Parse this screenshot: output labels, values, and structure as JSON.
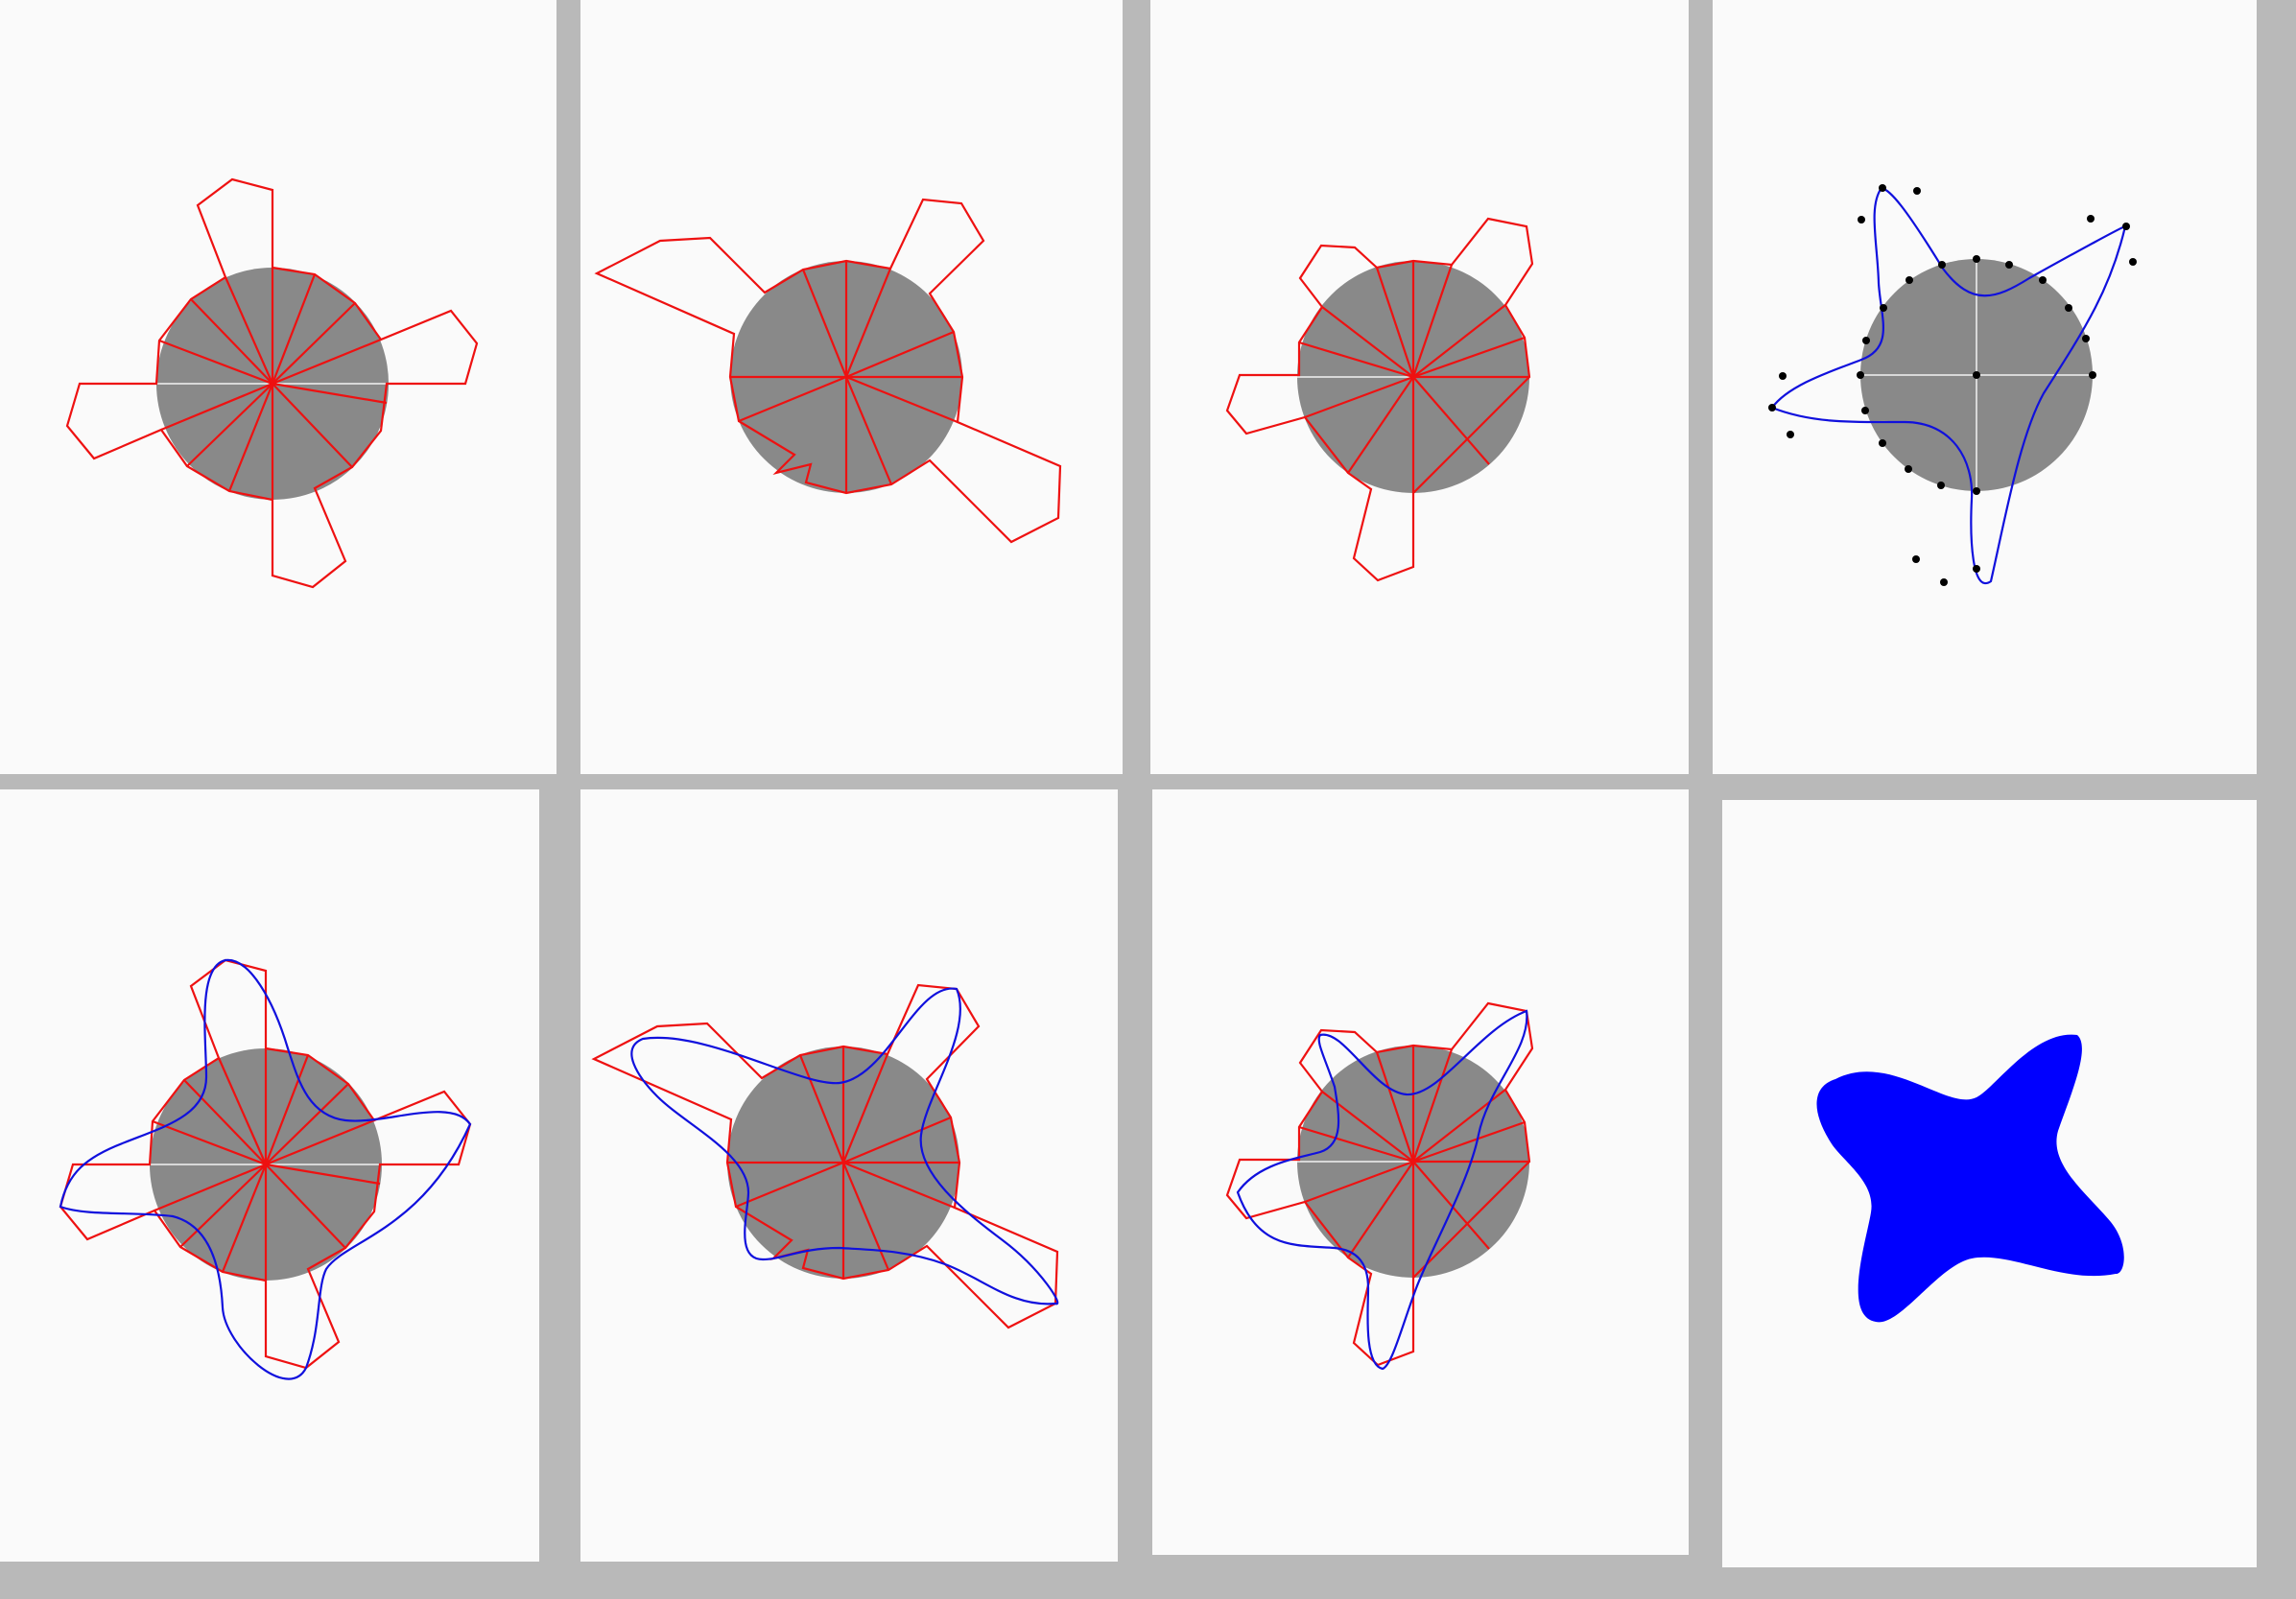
{
  "layout": {
    "rows": 2,
    "columns": 4
  },
  "steps": [
    {
      "step": 1,
      "content": [
        "disk",
        "axes",
        "red-fan",
        "red-polygon"
      ]
    },
    {
      "step": 2,
      "content": [
        "disk",
        "red-fan",
        "red-polygon"
      ]
    },
    {
      "step": 3,
      "content": [
        "disk",
        "axes",
        "red-fan",
        "red-polygon"
      ]
    },
    {
      "step": 4,
      "content": [
        "disk",
        "axes",
        "control-points",
        "blue-curve"
      ]
    },
    {
      "step": 5,
      "content": [
        "disk",
        "axes",
        "red-fan",
        "red-polygon",
        "blue-curve"
      ]
    },
    {
      "step": 6,
      "content": [
        "disk",
        "red-fan",
        "red-polygon",
        "blue-curve"
      ]
    },
    {
      "step": 7,
      "content": [
        "disk",
        "axes",
        "red-fan",
        "red-polygon",
        "blue-curve"
      ]
    },
    {
      "step": 8,
      "content": [
        "filled-blue-star"
      ]
    }
  ],
  "colors": {
    "background": "#b9b9b9",
    "panel": "#fafafa",
    "disk": "#898989",
    "axes": "#d8d8d8",
    "polygon": "#ee1111",
    "curve": "#1010dd",
    "fill": "#0000ff"
  }
}
